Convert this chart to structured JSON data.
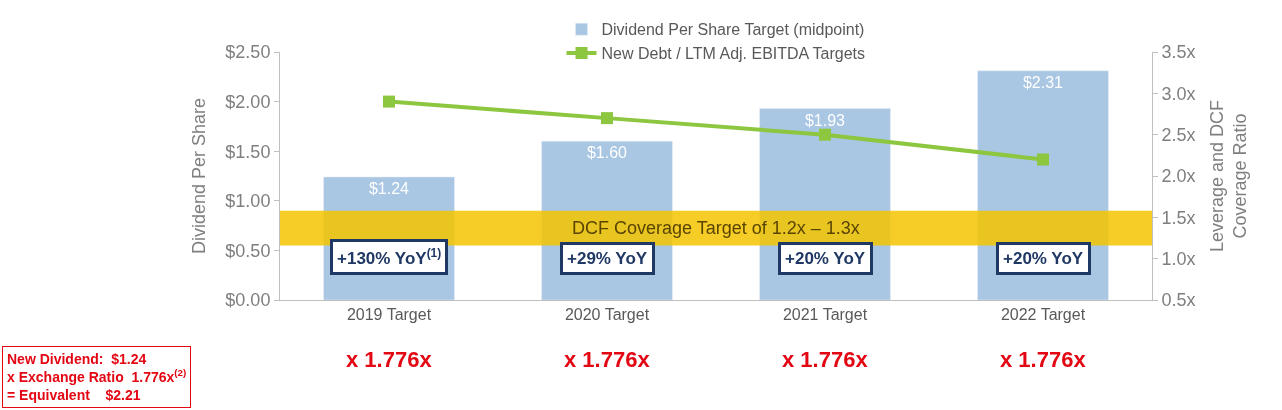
{
  "chart_data": {
    "type": "bar",
    "categories": [
      "2019 Target",
      "2020 Target",
      "2021 Target",
      "2022 Target"
    ],
    "series": [
      {
        "name": "Dividend Per Share Target (midpoint)",
        "color": "#a9c6e3",
        "values": [
          1.24,
          1.6,
          1.93,
          2.31
        ],
        "value_labels": [
          "$1.24",
          "$1.60",
          "$1.93",
          "$2.31"
        ]
      },
      {
        "name": "New Debt / LTM Adj. EBITDA Targets",
        "type": "line",
        "axis": "y2",
        "color": "#8dc63f",
        "values": [
          2.9,
          2.7,
          2.5,
          2.2
        ]
      }
    ],
    "ylabel": "Dividend Per Share",
    "y2label": "Leverage and DCF\nCoverage Ratio",
    "ylim": [
      0,
      2.5
    ],
    "yticks": [
      {
        "value": 0,
        "label": "$0.00"
      },
      {
        "value": 0.5,
        "label": "$0.50"
      },
      {
        "value": 1.0,
        "label": "$1.00"
      },
      {
        "value": 1.5,
        "label": "$1.50"
      },
      {
        "value": 2.0,
        "label": "$2.00"
      },
      {
        "value": 2.5,
        "label": "$2.50"
      }
    ],
    "y2lim": [
      0.5,
      3.5
    ],
    "y2ticks": [
      {
        "value": 0.5,
        "label": "0.5x"
      },
      {
        "value": 1.0,
        "label": "1.0x"
      },
      {
        "value": 1.5,
        "label": "1.5x"
      },
      {
        "value": 2.0,
        "label": "2.0x"
      },
      {
        "value": 2.5,
        "label": "2.5x"
      },
      {
        "value": 3.0,
        "label": "3.0x"
      },
      {
        "value": 3.5,
        "label": "3.5x"
      }
    ],
    "bands": [
      {
        "axis": "y",
        "from": 0.55,
        "to": 0.9,
        "label": "DCF Coverage Target of 1.2x – 1.3x",
        "color": "#f5c400"
      }
    ],
    "annotations": [
      "+130% YoY$^{(1)}$",
      "+29% YoY",
      "+20% YoY",
      "+20% YoY",
      "x 1.776x",
      "x 1.776x",
      "x 1.776x",
      "x 1.776x",
      "New Dividend:  $1.24\nx Exchange Ratio  1.776x$^{(2)}$\n= Equivalent    $2.21"
    ],
    "marker": "square",
    "legend": "top"
  }
}
